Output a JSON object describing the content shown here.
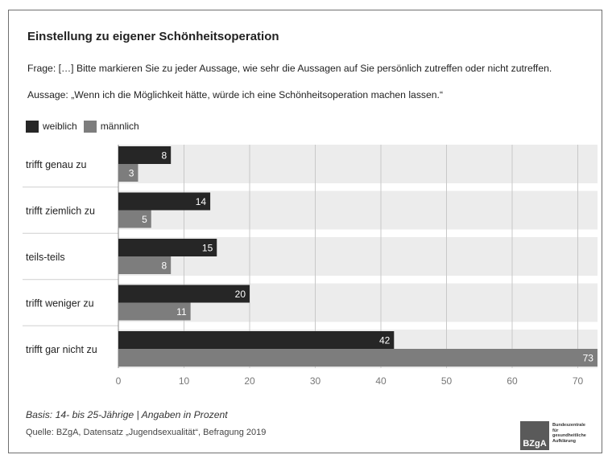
{
  "title": "Einstellung zu eigener Schönheitsoperation",
  "question": "Frage: […] Bitte markieren Sie zu jeder Aussage, wie sehr die Aussagen auf Sie persönlich zutreffen oder nicht zutreffen.",
  "statement": "Aussage: „Wenn ich die Möglichkeit hätte, würde ich eine Schönheitsoperation machen lassen.“",
  "footer": {
    "basis": "Basis: 14- bis 25-Jährige | Angaben in Prozent",
    "source": "Quelle: BZgA, Datensatz „Jugendsexualität“, Befragung 2019"
  },
  "logo": {
    "mark": "BZgA",
    "text_lines": [
      "Bundeszentrale",
      "für",
      "gesundheitliche",
      "Aufklärung"
    ]
  },
  "colors": {
    "weiblich": "#262626",
    "maennlich": "#7d7d7d",
    "band": "#ececec",
    "grid": "#c8c8c8"
  },
  "chart_data": {
    "type": "bar",
    "orientation": "horizontal",
    "categories": [
      "trifft genau zu",
      "trifft ziemlich zu",
      "teils-teils",
      "trifft weniger zu",
      "trifft gar nicht zu"
    ],
    "series": [
      {
        "name": "weiblich",
        "values": [
          8,
          14,
          15,
          20,
          42
        ]
      },
      {
        "name": "männlich",
        "values": [
          3,
          5,
          8,
          11,
          73
        ]
      }
    ],
    "xticks": [
      0,
      10,
      20,
      30,
      40,
      50,
      60,
      70
    ],
    "xlim": [
      0,
      73
    ],
    "grid": true,
    "legend": "top-left"
  }
}
